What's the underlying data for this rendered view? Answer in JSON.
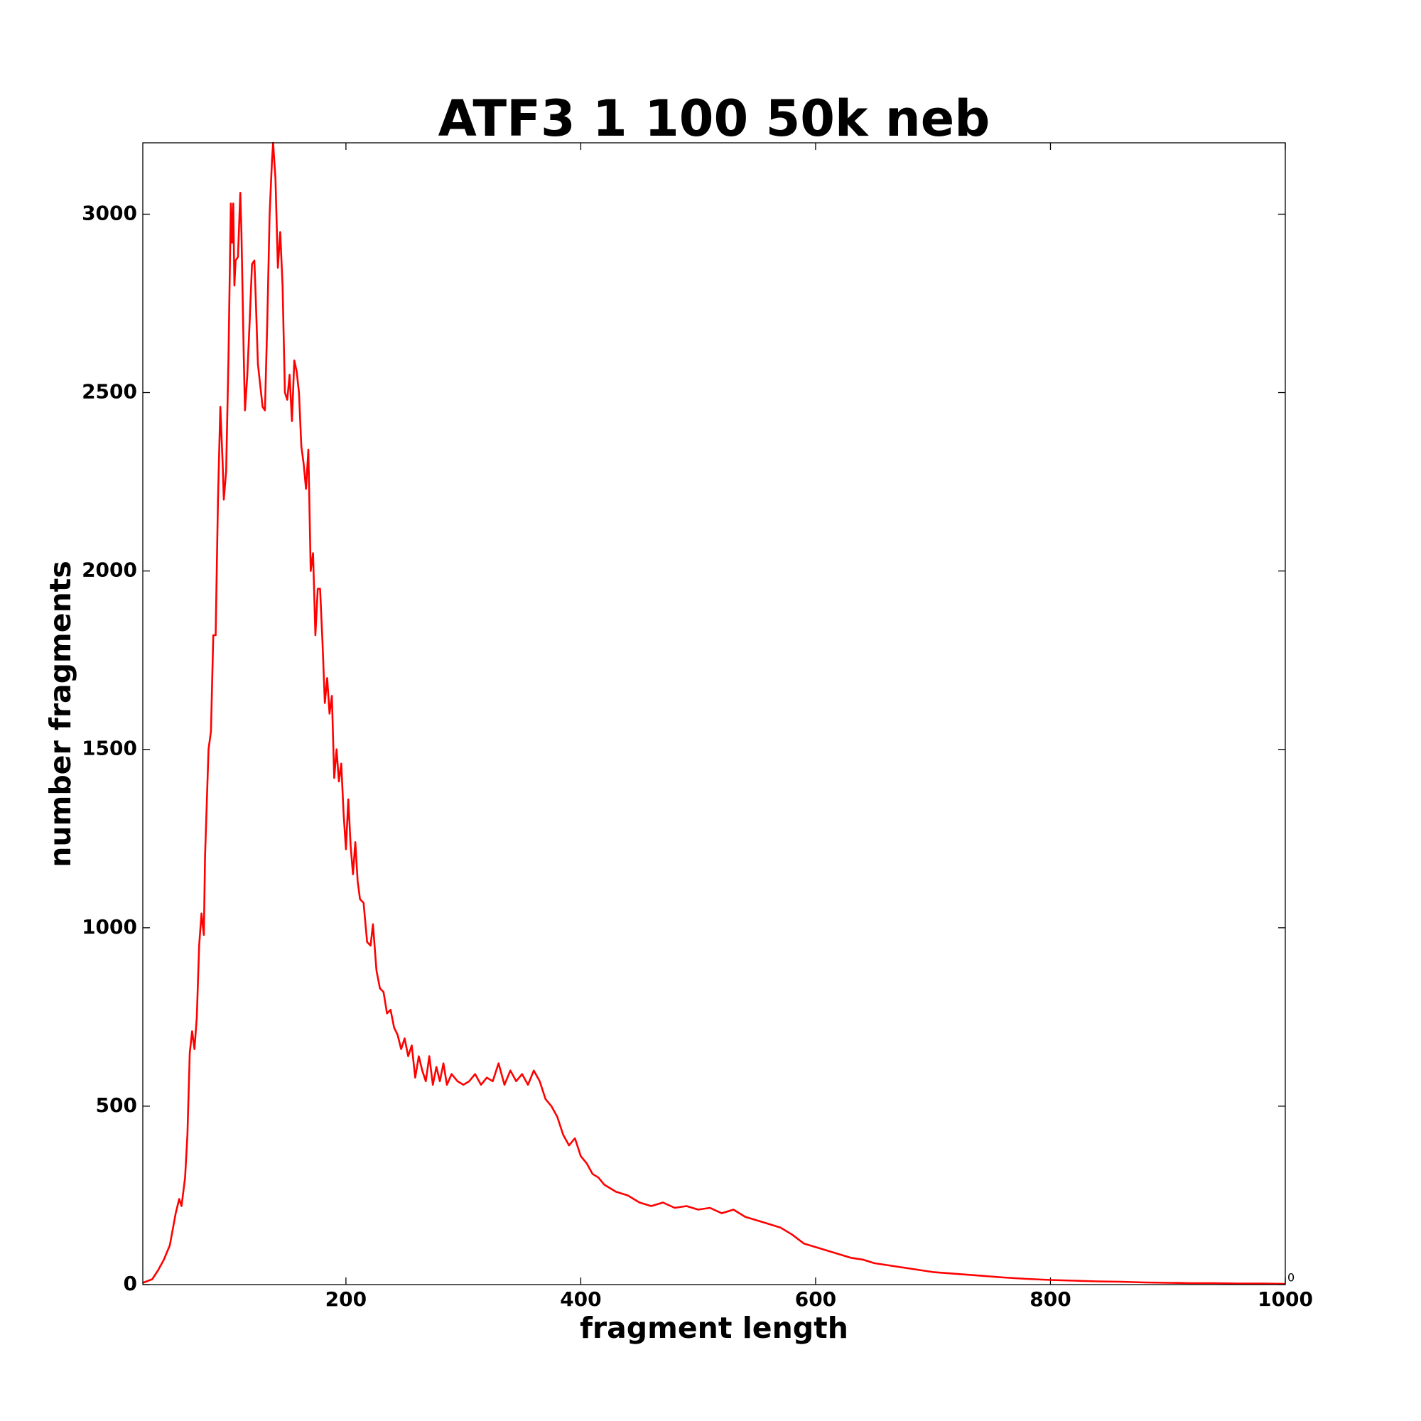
{
  "chart_data": {
    "type": "line",
    "title": "ATF3 1 100 50k neb",
    "xlabel": "fragment length",
    "ylabel": "number fragments",
    "annotation": "0",
    "xlim": [
      27,
      1000
    ],
    "ylim": [
      0,
      3200
    ],
    "xticks": [
      200,
      400,
      600,
      800,
      1000
    ],
    "yticks": [
      0,
      500,
      1000,
      1500,
      2000,
      2500,
      3000
    ],
    "grid": false,
    "x": [
      27,
      35,
      40,
      45,
      50,
      55,
      58,
      60,
      63,
      65,
      67,
      69,
      71,
      73,
      75,
      77,
      79,
      80,
      83,
      85,
      87,
      89,
      91,
      93,
      95,
      96,
      98,
      100,
      102,
      103,
      104,
      105,
      106,
      108,
      110,
      111,
      113,
      114,
      116,
      118,
      120,
      122,
      123,
      125,
      127,
      129,
      131,
      133,
      135,
      137,
      138,
      140,
      142,
      144,
      146,
      148,
      150,
      152,
      154,
      156,
      158,
      160,
      162,
      164,
      166,
      168,
      170,
      172,
      174,
      176,
      178,
      180,
      182,
      184,
      186,
      188,
      190,
      192,
      194,
      196,
      198,
      200,
      202,
      204,
      206,
      208,
      210,
      212,
      215,
      218,
      221,
      223,
      226,
      229,
      232,
      235,
      238,
      241,
      244,
      247,
      250,
      253,
      256,
      259,
      262,
      265,
      268,
      271,
      274,
      277,
      280,
      283,
      286,
      290,
      295,
      300,
      305,
      310,
      315,
      320,
      325,
      330,
      335,
      340,
      345,
      350,
      355,
      360,
      365,
      370,
      375,
      380,
      385,
      390,
      395,
      400,
      405,
      410,
      415,
      420,
      425,
      430,
      440,
      450,
      460,
      470,
      480,
      490,
      500,
      510,
      520,
      530,
      540,
      550,
      560,
      570,
      580,
      590,
      600,
      610,
      620,
      630,
      640,
      650,
      660,
      670,
      680,
      690,
      700,
      720,
      740,
      760,
      780,
      800,
      820,
      840,
      860,
      880,
      900,
      920,
      940,
      960,
      980,
      1000
    ],
    "series": [
      {
        "name": "fragments",
        "color": "#ff0000",
        "values": [
          5,
          15,
          40,
          70,
          110,
          200,
          240,
          220,
          300,
          420,
          650,
          710,
          660,
          750,
          950,
          1040,
          980,
          1200,
          1500,
          1550,
          1820,
          1820,
          2200,
          2460,
          2300,
          2200,
          2280,
          2600,
          3030,
          2920,
          3030,
          2800,
          2870,
          2880,
          3060,
          2950,
          2600,
          2450,
          2550,
          2700,
          2860,
          2870,
          2780,
          2580,
          2520,
          2460,
          2450,
          2700,
          3000,
          3150,
          3200,
          3100,
          2850,
          2950,
          2800,
          2500,
          2480,
          2550,
          2420,
          2590,
          2560,
          2500,
          2350,
          2300,
          2230,
          2340,
          2000,
          2050,
          1820,
          1950,
          1950,
          1800,
          1630,
          1700,
          1600,
          1650,
          1420,
          1500,
          1410,
          1460,
          1320,
          1220,
          1360,
          1230,
          1150,
          1240,
          1130,
          1080,
          1070,
          960,
          950,
          1010,
          880,
          830,
          820,
          760,
          770,
          720,
          700,
          660,
          690,
          640,
          670,
          580,
          640,
          600,
          570,
          640,
          560,
          610,
          570,
          620,
          560,
          590,
          570,
          560,
          570,
          590,
          560,
          580,
          570,
          620,
          560,
          600,
          570,
          590,
          560,
          600,
          570,
          520,
          500,
          470,
          420,
          390,
          410,
          360,
          340,
          310,
          300,
          280,
          270,
          260,
          250,
          230,
          220,
          230,
          215,
          220,
          210,
          215,
          200,
          210,
          190,
          180,
          170,
          160,
          140,
          115,
          105,
          95,
          85,
          75,
          70,
          60,
          55,
          50,
          45,
          40,
          35,
          30,
          25,
          20,
          16,
          13,
          11,
          9,
          8,
          6,
          5,
          4,
          4,
          3,
          3,
          2
        ]
      }
    ]
  }
}
